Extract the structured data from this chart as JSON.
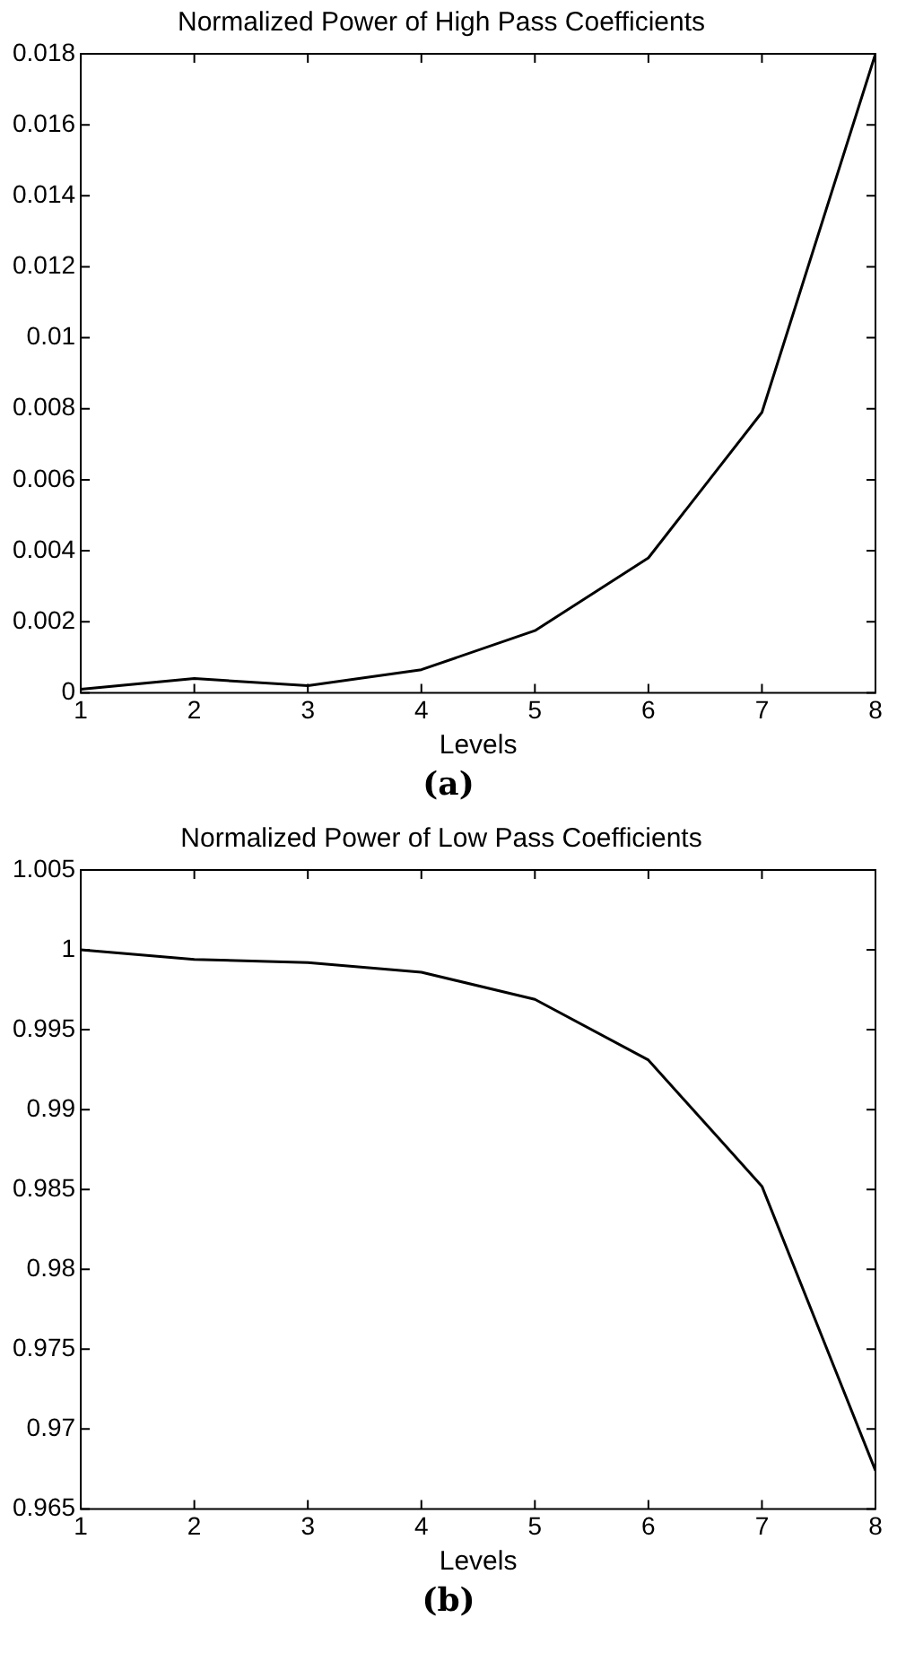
{
  "chart_data": [
    {
      "type": "line",
      "title": "Normalized Power of High Pass Coefficients",
      "xlabel": "Levels",
      "x": [
        1,
        2,
        3,
        4,
        5,
        6,
        7,
        8
      ],
      "series": [
        {
          "color": "#000000",
          "values": [
            0.0001,
            0.0004,
            0.0002,
            0.00065,
            0.00175,
            0.0038,
            0.0079,
            0.018
          ]
        }
      ],
      "xlim": [
        1,
        8
      ],
      "xticks": [
        1,
        2,
        3,
        4,
        5,
        6,
        7,
        8
      ],
      "ylim": [
        0,
        0.018
      ],
      "yticks": [
        0,
        0.002,
        0.004,
        0.006,
        0.008,
        0.01,
        0.012,
        0.014,
        0.016,
        0.018
      ],
      "grid": false,
      "legend": false,
      "marker": "none",
      "line_style": "solid",
      "annotations": [
        "(a)"
      ]
    },
    {
      "type": "line",
      "title": "Normalized Power of Low Pass Coefficients",
      "xlabel": "Levels",
      "x": [
        1,
        2,
        3,
        4,
        5,
        6,
        7,
        8
      ],
      "series": [
        {
          "color": "#000000",
          "values": [
            1.0,
            0.9994,
            0.9992,
            0.9986,
            0.9969,
            0.9931,
            0.9852,
            0.9674
          ]
        }
      ],
      "xlim": [
        1,
        8
      ],
      "xticks": [
        1,
        2,
        3,
        4,
        5,
        6,
        7,
        8
      ],
      "ylim": [
        0.965,
        1.005
      ],
      "yticks": [
        0.965,
        0.97,
        0.975,
        0.98,
        0.985,
        0.99,
        0.995,
        1,
        1.005
      ],
      "grid": false,
      "legend": false,
      "marker": "none",
      "line_style": "solid",
      "annotations": [
        "(b)"
      ]
    }
  ]
}
